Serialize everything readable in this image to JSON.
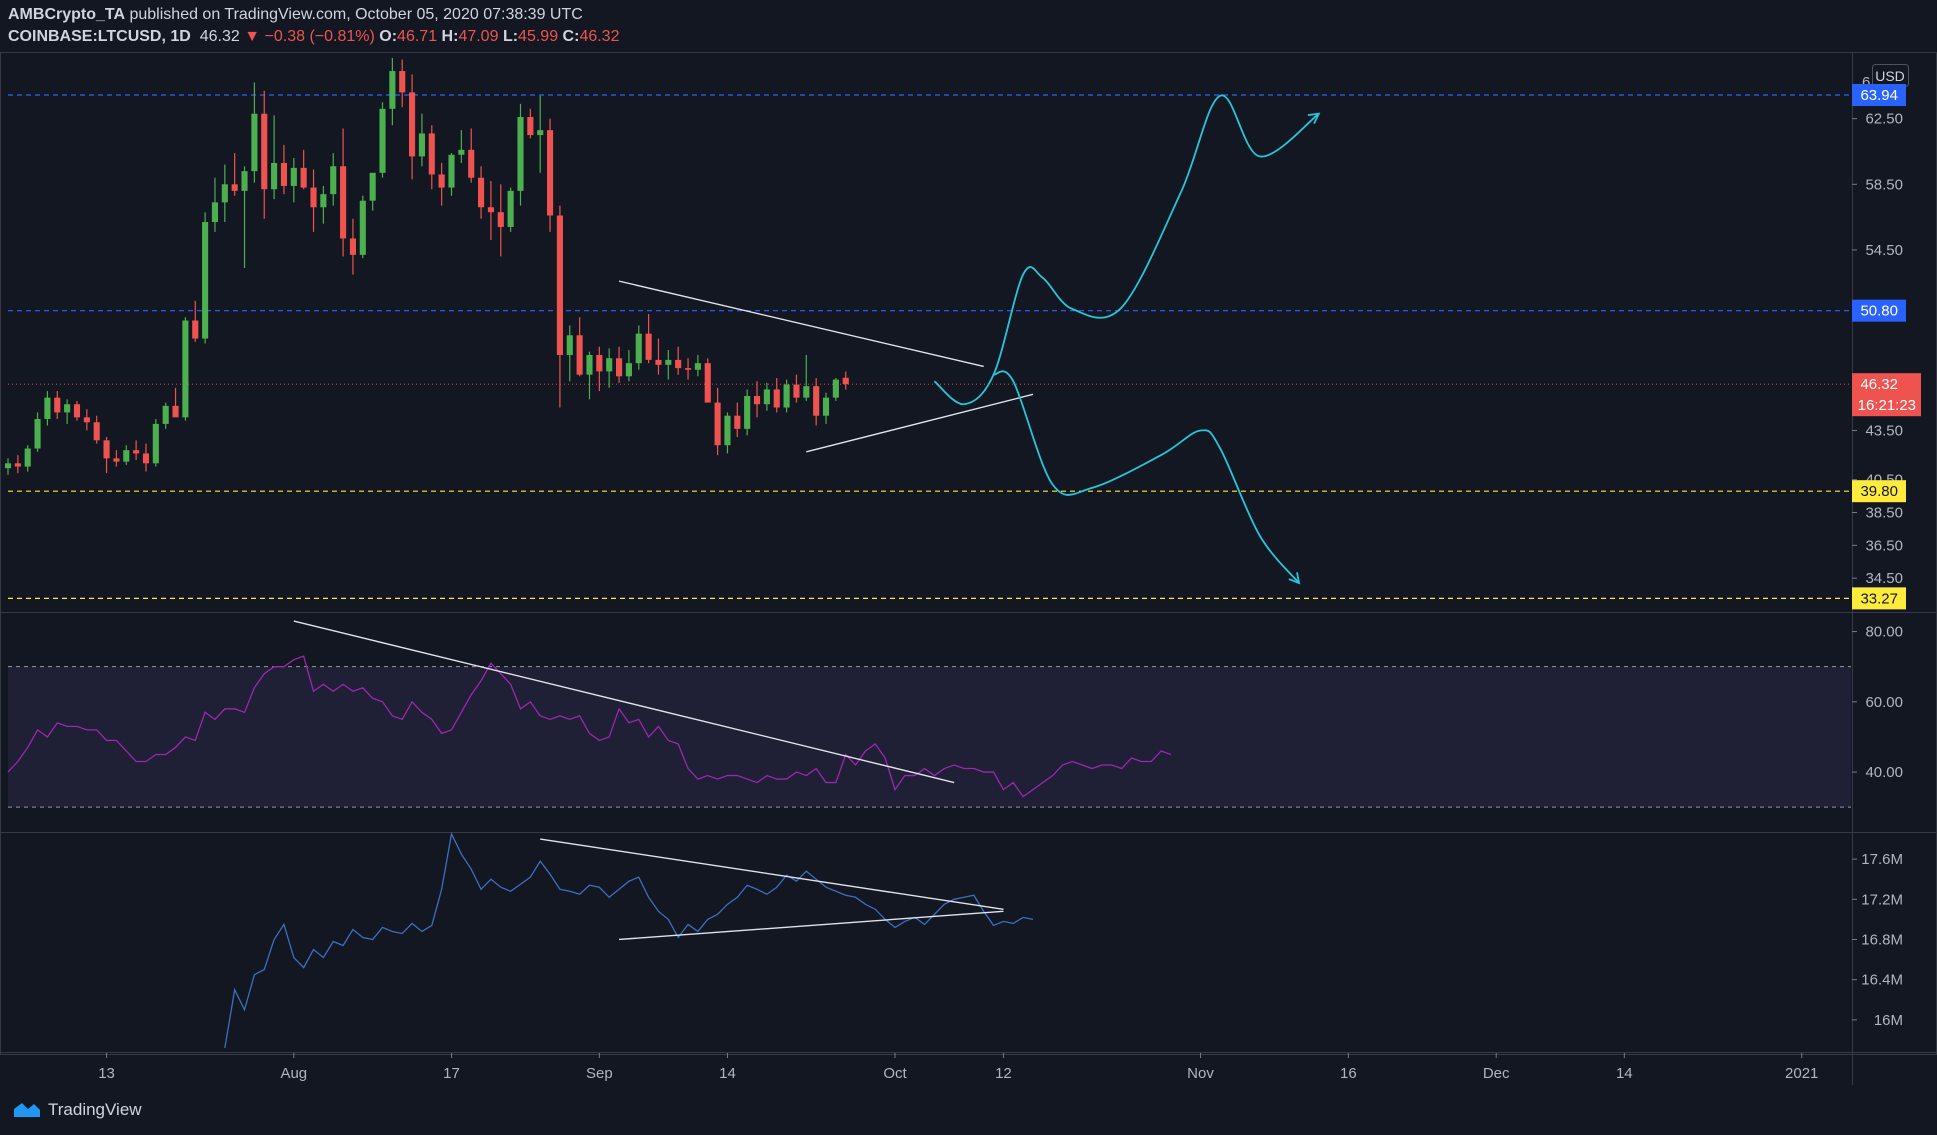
{
  "header": {
    "publisher": "AMBCrypto_TA",
    "published_text": "published on TradingView.com, October 05, 2020 07:38:39 UTC",
    "symbol": "COINBASE:LTCUSD, 1D",
    "last": "46.32",
    "change": "−0.38 (−0.81%)",
    "o_label": "O:",
    "o": "46.71",
    "h_label": "H:",
    "h": "47.09",
    "l_label": "L:",
    "l": "45.99",
    "c_label": "C:",
    "c": "46.32"
  },
  "footer": {
    "brand": "TradingView"
  },
  "colors": {
    "background": "#131722",
    "up": "#26a69a",
    "up_candle": "#4caf50",
    "down": "#ef5350",
    "rsi": "#9c27b0",
    "obv": "#3b6fbf",
    "projection": "#26c6da",
    "trend": "#ffffff",
    "level_blue": "#2962ff",
    "level_yellow": "#ffeb3b"
  },
  "chart_data": [
    {
      "type": "candlestick",
      "pane": "price",
      "currency": "USD",
      "y_ticks": [
        "62.50",
        "58.50",
        "54.50",
        "43.50",
        "40.50",
        "38.50",
        "36.50",
        "34.50"
      ],
      "y_tick_values": [
        62.5,
        58.5,
        54.5,
        43.5,
        40.5,
        38.5,
        36.5,
        34.5
      ],
      "top_tick": "6",
      "ylim": [
        32.5,
        66.5
      ],
      "x_ticks": [
        "13",
        "Aug",
        "17",
        "Sep",
        "14",
        "Oct",
        "12",
        "Nov",
        "16",
        "Dec",
        "14",
        "2021"
      ],
      "x_tick_dates": [
        "2020-07-13",
        "2020-08-01",
        "2020-08-17",
        "2020-09-01",
        "2020-09-14",
        "2020-10-01",
        "2020-10-12",
        "2020-11-01",
        "2020-11-16",
        "2020-12-01",
        "2020-12-14",
        "2021-01-01"
      ],
      "xlim": [
        "2020-07-03",
        "2021-01-06"
      ],
      "levels": [
        {
          "value": 63.94,
          "label": "63.94",
          "color": "#2962ff"
        },
        {
          "value": 50.8,
          "label": "50.80",
          "color": "#2962ff"
        },
        {
          "value": 39.8,
          "label": "39.80",
          "color": "#ffeb3b"
        },
        {
          "value": 33.27,
          "label": "33.27",
          "color": "#ffeb3b"
        }
      ],
      "last_price": {
        "value": 46.32,
        "label": "46.32",
        "countdown": "16:21:23"
      },
      "candles_ohlc_start": "2020-07-03",
      "candles_ohlc": [
        [
          41.2,
          41.8,
          40.8,
          41.5
        ],
        [
          41.5,
          42.0,
          40.9,
          41.3
        ],
        [
          41.3,
          42.6,
          41.0,
          42.4
        ],
        [
          42.4,
          44.6,
          42.2,
          44.2
        ],
        [
          44.2,
          45.9,
          43.8,
          45.5
        ],
        [
          45.5,
          45.9,
          44.2,
          44.6
        ],
        [
          44.6,
          45.4,
          43.9,
          45.1
        ],
        [
          45.1,
          45.3,
          44.1,
          44.3
        ],
        [
          44.3,
          44.8,
          43.5,
          44.0
        ],
        [
          44.0,
          44.4,
          42.7,
          42.9
        ],
        [
          42.9,
          43.1,
          40.9,
          41.8
        ],
        [
          41.8,
          42.3,
          41.3,
          41.6
        ],
        [
          41.6,
          42.6,
          41.4,
          42.3
        ],
        [
          42.3,
          42.9,
          41.7,
          42.1
        ],
        [
          42.1,
          42.7,
          41.0,
          41.5
        ],
        [
          41.5,
          44.2,
          41.3,
          43.9
        ],
        [
          43.9,
          45.2,
          43.6,
          45.0
        ],
        [
          45.0,
          46.1,
          44.8,
          44.3
        ],
        [
          44.3,
          50.4,
          44.1,
          50.2
        ],
        [
          50.2,
          51.4,
          48.9,
          49.1
        ],
        [
          49.1,
          56.8,
          48.8,
          56.2
        ],
        [
          56.2,
          58.9,
          55.6,
          57.4
        ],
        [
          57.4,
          59.7,
          56.2,
          58.5
        ],
        [
          58.5,
          60.4,
          57.8,
          58.1
        ],
        [
          58.1,
          59.6,
          53.4,
          59.3
        ],
        [
          59.3,
          64.7,
          58.6,
          62.8
        ],
        [
          62.8,
          64.2,
          56.4,
          58.2
        ],
        [
          58.2,
          62.7,
          57.6,
          59.8
        ],
        [
          59.8,
          60.9,
          57.9,
          58.4
        ],
        [
          58.4,
          60.1,
          57.4,
          59.5
        ],
        [
          59.5,
          60.6,
          58.2,
          58.3
        ],
        [
          58.3,
          59.4,
          55.6,
          57.1
        ],
        [
          57.1,
          58.4,
          56.1,
          57.9
        ],
        [
          57.9,
          60.4,
          57.2,
          59.6
        ],
        [
          59.6,
          61.9,
          54.1,
          55.2
        ],
        [
          55.2,
          56.4,
          53.0,
          54.2
        ],
        [
          54.2,
          57.8,
          54.0,
          57.5
        ],
        [
          57.5,
          58.8,
          56.9,
          59.2
        ],
        [
          59.2,
          63.5,
          58.9,
          63.1
        ],
        [
          63.1,
          66.2,
          62.1,
          65.4
        ],
        [
          65.4,
          66.1,
          63.2,
          64.1
        ],
        [
          64.1,
          65.2,
          58.8,
          60.2
        ],
        [
          60.2,
          62.8,
          59.6,
          61.6
        ],
        [
          61.6,
          62.1,
          58.2,
          59.1
        ],
        [
          59.1,
          59.8,
          57.2,
          58.3
        ],
        [
          58.3,
          60.4,
          57.8,
          60.3
        ],
        [
          60.3,
          61.8,
          59.8,
          60.6
        ],
        [
          60.6,
          61.9,
          58.6,
          58.9
        ],
        [
          58.9,
          59.6,
          56.4,
          57.1
        ],
        [
          57.1,
          58.7,
          55.1,
          56.8
        ],
        [
          56.8,
          58.5,
          54.1,
          55.9
        ],
        [
          55.9,
          58.3,
          55.6,
          58.1
        ],
        [
          58.1,
          63.4,
          57.2,
          62.6
        ],
        [
          62.6,
          63.1,
          61.3,
          61.5
        ],
        [
          61.5,
          63.9,
          59.2,
          61.8
        ],
        [
          61.8,
          62.5,
          55.6,
          56.6
        ],
        [
          56.6,
          57.2,
          44.9,
          48.1
        ],
        [
          48.1,
          49.9,
          46.5,
          49.3
        ],
        [
          49.3,
          50.4,
          46.8,
          46.9
        ],
        [
          46.9,
          48.3,
          45.4,
          48.1
        ],
        [
          48.1,
          48.6,
          45.9,
          47.1
        ],
        [
          47.1,
          48.5,
          46.1,
          47.9
        ],
        [
          47.9,
          48.6,
          46.4,
          46.8
        ],
        [
          46.8,
          48.4,
          46.5,
          47.6
        ],
        [
          47.6,
          49.9,
          47.2,
          49.4
        ],
        [
          49.4,
          50.6,
          47.6,
          47.8
        ],
        [
          47.8,
          49.1,
          46.9,
          47.5
        ],
        [
          47.5,
          48.4,
          46.6,
          47.8
        ],
        [
          47.8,
          48.6,
          46.9,
          47.3
        ],
        [
          47.3,
          47.9,
          46.6,
          47.2
        ],
        [
          47.2,
          48.1,
          46.8,
          47.6
        ],
        [
          47.6,
          47.9,
          46.3,
          45.2
        ],
        [
          45.2,
          46.1,
          42.0,
          42.6
        ],
        [
          42.6,
          44.6,
          42.1,
          44.4
        ],
        [
          44.4,
          45.2,
          43.1,
          43.6
        ],
        [
          43.6,
          46.0,
          43.2,
          45.6
        ],
        [
          45.6,
          46.5,
          44.3,
          45.1
        ],
        [
          45.1,
          46.4,
          44.7,
          46.0
        ],
        [
          46.0,
          46.7,
          44.6,
          44.9
        ],
        [
          44.9,
          46.6,
          44.6,
          46.3
        ],
        [
          46.3,
          46.9,
          45.2,
          45.5
        ],
        [
          45.5,
          48.1,
          45.3,
          46.2
        ],
        [
          46.2,
          46.7,
          43.8,
          44.4
        ],
        [
          44.4,
          45.8,
          43.9,
          45.5
        ],
        [
          45.5,
          46.7,
          45.3,
          46.6
        ],
        [
          46.71,
          47.09,
          45.99,
          46.32
        ]
      ],
      "pattern_lines": [
        {
          "from": [
            "2020-09-03",
            52.6
          ],
          "to": [
            "2020-10-10",
            47.4
          ]
        },
        {
          "from": [
            "2020-09-22",
            42.2
          ],
          "to": [
            "2020-10-15",
            45.7
          ]
        }
      ],
      "projections": [
        {
          "name": "bullish",
          "points": [
            [
              "2020-10-05",
              46.5
            ],
            [
              "2020-10-08",
              45.1
            ],
            [
              "2020-10-11",
              46.9
            ],
            [
              "2020-10-14",
              53.0
            ],
            [
              "2020-10-16",
              52.8
            ],
            [
              "2020-10-19",
              50.9
            ],
            [
              "2020-10-24",
              51.0
            ],
            [
              "2020-10-30",
              58.0
            ],
            [
              "2020-11-03",
              63.9
            ],
            [
              "2020-11-07",
              60.2
            ],
            [
              "2020-11-13",
              62.8
            ]
          ]
        },
        {
          "name": "bearish",
          "points": [
            [
              "2020-10-11",
              46.9
            ],
            [
              "2020-10-13",
              46.5
            ],
            [
              "2020-10-17",
              40.2
            ],
            [
              "2020-10-21",
              40.0
            ],
            [
              "2020-10-28",
              42.0
            ],
            [
              "2020-11-01",
              43.5
            ],
            [
              "2020-11-03",
              42.4
            ],
            [
              "2020-11-07",
              37.1
            ],
            [
              "2020-11-11",
              34.2
            ]
          ]
        }
      ]
    },
    {
      "type": "line",
      "pane": "rsi",
      "y_ticks": [
        "80.00",
        "60.00",
        "40.00"
      ],
      "y_tick_values": [
        80,
        60,
        40
      ],
      "ylim": [
        23.5,
        85
      ],
      "band": [
        30,
        70
      ],
      "x_start": "2020-07-03",
      "values": [
        40,
        43,
        47,
        52,
        50,
        54,
        53,
        53,
        52,
        52,
        49,
        49,
        46,
        43,
        43,
        45,
        45,
        47,
        50,
        49,
        57,
        55,
        58,
        58,
        57,
        64,
        68,
        70,
        70,
        72,
        73,
        63,
        65,
        63,
        65,
        63,
        64,
        61,
        60,
        56,
        55,
        60,
        57,
        55,
        51,
        52,
        57,
        62,
        66,
        71,
        68,
        65,
        58,
        60,
        56,
        55,
        56,
        55,
        56,
        51,
        49,
        50,
        58,
        54,
        55,
        50,
        53,
        49,
        48,
        41,
        38,
        39,
        38,
        39,
        39,
        38,
        37,
        39,
        38,
        38,
        40,
        39,
        41,
        37,
        37,
        45,
        42,
        46,
        48,
        44,
        35,
        39,
        39,
        41,
        39,
        41,
        42,
        41,
        41,
        40,
        40,
        35,
        37,
        33,
        35,
        37,
        39,
        42,
        43,
        42,
        41,
        42,
        42,
        41,
        44,
        43,
        43,
        46,
        45
      ],
      "trendline": {
        "from": [
          "2020-08-01",
          83
        ],
        "to": [
          "2020-10-07",
          37
        ]
      }
    },
    {
      "type": "line",
      "pane": "volume-indicator",
      "y_ticks": [
        "17.6M",
        "17.2M",
        "16.8M",
        "16.4M",
        "16M"
      ],
      "y_tick_values": [
        17.6,
        17.2,
        16.8,
        16.4,
        16.0
      ],
      "ylim": [
        15.7,
        17.85
      ],
      "x_start": "2020-07-25",
      "values": [
        15.72,
        16.3,
        16.1,
        16.45,
        16.5,
        16.8,
        16.95,
        16.62,
        16.52,
        16.7,
        16.62,
        16.78,
        16.74,
        16.9,
        16.82,
        16.8,
        16.92,
        16.88,
        16.86,
        16.96,
        16.88,
        16.94,
        17.3,
        17.85,
        17.65,
        17.5,
        17.3,
        17.4,
        17.32,
        17.28,
        17.35,
        17.42,
        17.58,
        17.45,
        17.3,
        17.28,
        17.25,
        17.34,
        17.32,
        17.22,
        17.3,
        17.38,
        17.42,
        17.22,
        17.08,
        17.0,
        16.82,
        16.95,
        16.88,
        17.0,
        17.05,
        17.15,
        17.22,
        17.34,
        17.3,
        17.25,
        17.32,
        17.44,
        17.38,
        17.48,
        17.4,
        17.32,
        17.28,
        17.24,
        17.22,
        17.15,
        17.1,
        17.0,
        16.92,
        16.98,
        17.02,
        16.95,
        17.05,
        17.15,
        17.2,
        17.22,
        17.24,
        17.08,
        16.94,
        16.98,
        16.96,
        17.02,
        17.0
      ],
      "trendlines": [
        {
          "from": [
            "2020-08-26",
            17.8
          ],
          "to": [
            "2020-10-12",
            17.1
          ]
        },
        {
          "from": [
            "2020-09-03",
            16.8
          ],
          "to": [
            "2020-10-12",
            17.08
          ]
        }
      ]
    }
  ]
}
